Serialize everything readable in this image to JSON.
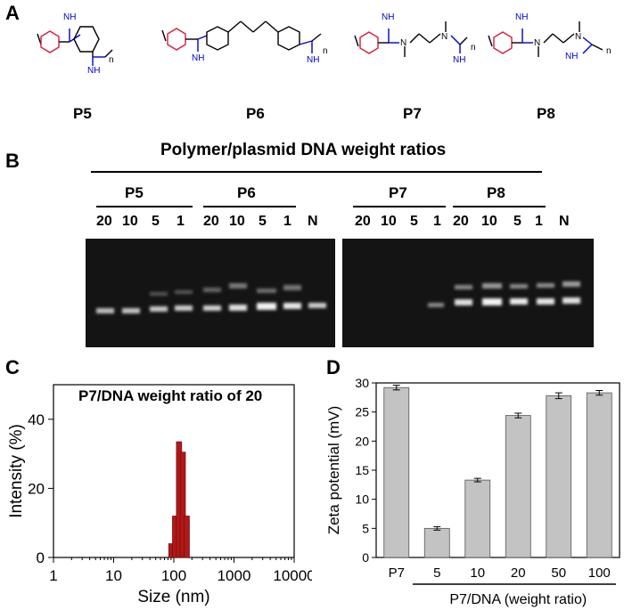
{
  "panels": {
    "a": "A",
    "b": "B",
    "c": "C",
    "d": "D"
  },
  "structures": {
    "names": [
      "P5",
      "P6",
      "P7",
      "P8"
    ],
    "imine": "NH",
    "n": "n",
    "n_atom": "N"
  },
  "gel": {
    "title": "Polymer/plasmid DNA weight ratios",
    "left_groups": [
      "P5",
      "P6"
    ],
    "right_groups": [
      "P7",
      "P8"
    ],
    "lanes_left": [
      "20",
      "10",
      "5",
      "1",
      "20",
      "10",
      "5",
      "1",
      "N"
    ],
    "lanes_right": [
      "20",
      "10",
      "5",
      "1",
      "20",
      "10",
      "5",
      "1",
      "N"
    ]
  },
  "colors": {
    "ring": "#d81b3c",
    "amidine": "#0000cc",
    "bar": "#c3c3c3",
    "size_bar": "#b01818"
  },
  "chart_data": [
    {
      "type": "bar",
      "title": "P7/DNA weight ratio of 20",
      "xlabel": "Size (nm)",
      "ylabel": "Intensity (%)",
      "xscale": "log",
      "xlim": [
        1,
        10000
      ],
      "ylim": [
        0,
        50
      ],
      "xticks": [
        "1",
        "10",
        "100",
        "1000",
        "10000"
      ],
      "yticks": [
        "0",
        "20",
        "40"
      ],
      "x": [
        91,
        105,
        122,
        141,
        164
      ],
      "values": [
        4,
        12,
        33.5,
        30.5,
        12
      ]
    },
    {
      "type": "bar",
      "xlabel": "P7/DNA (weight ratio)",
      "ylabel": "Zeta potential (mV)",
      "ylim": [
        0,
        30
      ],
      "yticks": [
        "0",
        "5",
        "10",
        "15",
        "20",
        "25",
        "30"
      ],
      "categories": [
        "P7",
        "5",
        "10",
        "20",
        "50",
        "100"
      ],
      "values": [
        29.2,
        5.0,
        13.3,
        24.4,
        27.8,
        28.3
      ],
      "errors": [
        0.4,
        0.3,
        0.3,
        0.4,
        0.5,
        0.4
      ]
    }
  ]
}
